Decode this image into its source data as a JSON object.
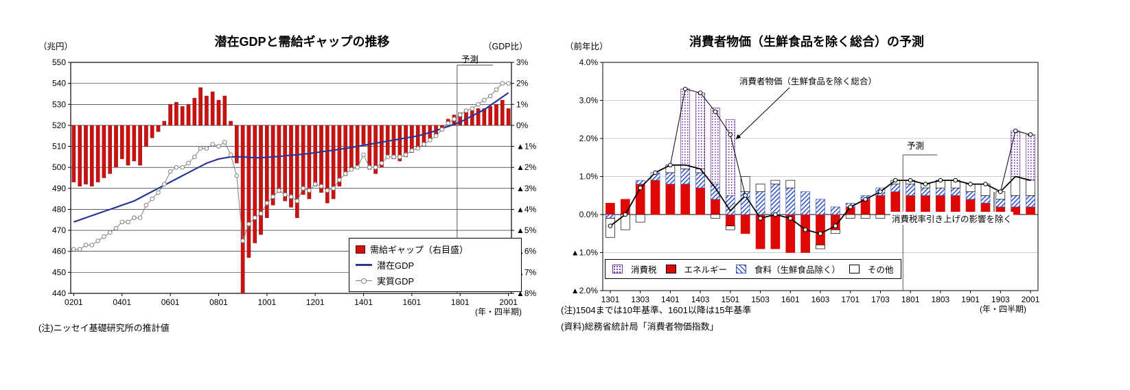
{
  "colors": {
    "gap_bar": "#cc1111",
    "gap_bar_edge": "#7a0000",
    "potential": "#283593",
    "actual": "#7f7f7f",
    "tax": "#7030a0",
    "energy": "#dd0806",
    "food": "#3355bb"
  },
  "left_chart": {
    "title": "潜在GDPと需給ギャップの推移",
    "y_left_unit": "（兆円）",
    "y_right_unit": "（GDP比）",
    "forecast_label": "予測",
    "note": "(注)ニッセイ基礎研究所の推計値",
    "x_unit": "(年・四半期)",
    "legend": [
      {
        "label": "需給ギャップ（右目盛）"
      },
      {
        "label": "潜在GDP"
      },
      {
        "label": "実質GDP"
      }
    ]
  },
  "right_chart": {
    "title": "消費者物価（生鮮食品を除く総合）の予測",
    "y_unit": "（前年比）",
    "forecast_label": "予測",
    "annotation_cpi": "消費者物価（生鮮食品を除く総合）",
    "annotation_extax": "消費税率引き上げの影響を除く",
    "note1": "(注)1504までは10年基準、1601以降は15年基準",
    "note2": "(資料)総務省統計局「消費者物価指数」",
    "x_unit": "(年・四半期)",
    "legend": [
      {
        "label": "消費税"
      },
      {
        "label": "エネルギー"
      },
      {
        "label": "食料（生鮮食品除く）"
      },
      {
        "label": "その他"
      }
    ]
  },
  "chart_data": [
    {
      "type": "bar",
      "title": "潜在GDPと需給ギャップの推移",
      "x": [
        "0201",
        "0202",
        "0203",
        "0204",
        "0301",
        "0302",
        "0303",
        "0304",
        "0401",
        "0402",
        "0403",
        "0404",
        "0501",
        "0502",
        "0503",
        "0504",
        "0601",
        "0602",
        "0603",
        "0604",
        "0701",
        "0702",
        "0703",
        "0704",
        "0801",
        "0802",
        "0803",
        "0804",
        "0901",
        "0902",
        "0903",
        "0904",
        "1001",
        "1002",
        "1003",
        "1004",
        "1101",
        "1102",
        "1103",
        "1104",
        "1201",
        "1202",
        "1203",
        "1204",
        "1301",
        "1302",
        "1303",
        "1304",
        "1401",
        "1402",
        "1403",
        "1404",
        "1501",
        "1502",
        "1503",
        "1504",
        "1601",
        "1602",
        "1603",
        "1604",
        "1701",
        "1702",
        "1703",
        "1704",
        "1801",
        "1802",
        "1803",
        "1804",
        "1901",
        "1902",
        "1903",
        "1904",
        "2001"
      ],
      "x_tick_every": 8,
      "y_left": {
        "label": "兆円",
        "min": 440,
        "max": 550,
        "step": 10
      },
      "y_right": {
        "label": "GDP比(%)",
        "min": -8,
        "max": 3,
        "step": 1
      },
      "forecast_start": "1801",
      "grid": true,
      "legend_position": "inside-lower-right",
      "series": [
        {
          "name": "需給ギャップ（右目盛）",
          "type": "bar",
          "axis": "right",
          "values": [
            -2.7,
            -2.9,
            -2.8,
            -2.9,
            -2.7,
            -2.5,
            -2.3,
            -2.0,
            -1.6,
            -1.9,
            -1.7,
            -1.9,
            -1.0,
            -0.6,
            -0.3,
            0.2,
            1.0,
            1.1,
            0.9,
            1.0,
            1.3,
            1.8,
            1.4,
            1.6,
            1.2,
            1.4,
            0.2,
            -1.8,
            -8.0,
            -6.3,
            -5.6,
            -5.2,
            -4.4,
            -3.8,
            -3.2,
            -3.6,
            -3.9,
            -4.4,
            -3.3,
            -3.5,
            -2.9,
            -3.2,
            -3.7,
            -3.5,
            -2.9,
            -2.4,
            -2.1,
            -1.9,
            -0.9,
            -2.1,
            -2.3,
            -2.0,
            -1.4,
            -1.6,
            -1.7,
            -1.5,
            -1.3,
            -1.1,
            -1.0,
            -0.7,
            -0.5,
            -0.1,
            0.3,
            0.5,
            0.6,
            0.7,
            0.7,
            0.8,
            0.8,
            0.9,
            1.0,
            1.2,
            0.8
          ]
        },
        {
          "name": "潜在GDP",
          "type": "line",
          "axis": "left",
          "values": [
            474,
            475,
            476,
            477,
            478,
            479,
            480,
            481,
            482,
            483,
            484,
            485.5,
            487,
            488.5,
            490,
            491.5,
            493,
            494.5,
            496,
            497.5,
            499,
            500.5,
            502,
            503,
            504,
            504.5,
            505,
            505,
            505,
            504.8,
            504.6,
            504.6,
            504.8,
            505,
            505.2,
            505.5,
            505.8,
            506,
            506.3,
            506.6,
            507,
            507.4,
            507.8,
            508.2,
            508.6,
            509,
            509.5,
            510,
            510.5,
            511,
            511.5,
            512,
            512.5,
            513,
            513.5,
            514,
            514.5,
            515,
            515.8,
            516.6,
            517.5,
            518.5,
            519.5,
            520.5,
            521.5,
            523,
            524.5,
            526,
            527.5,
            529.5,
            531.5,
            533.5,
            535.5
          ]
        },
        {
          "name": "実質GDP",
          "type": "line",
          "marker": "circle",
          "axis": "left",
          "values": [
            461,
            461,
            463,
            463,
            465,
            467,
            469,
            471,
            474,
            474,
            476,
            476,
            482,
            485,
            488,
            492,
            498,
            500,
            500,
            502,
            505,
            509,
            509,
            511,
            510,
            512,
            506,
            496,
            465,
            473,
            476,
            478,
            483,
            486,
            489,
            487,
            486,
            484,
            490,
            489,
            492,
            491,
            489,
            490,
            494,
            497,
            499,
            500,
            506,
            500,
            500,
            502,
            505,
            505,
            505,
            506,
            508,
            509,
            511,
            513,
            515,
            518,
            521,
            523,
            525,
            527,
            528,
            530,
            532,
            534,
            537,
            540,
            540
          ]
        }
      ]
    },
    {
      "type": "bar",
      "stacked": true,
      "title": "消費者物価（生鮮食品を除く総合）の予測",
      "x": [
        "1301",
        "1302",
        "1303",
        "1304",
        "1401",
        "1402",
        "1403",
        "1404",
        "1501",
        "1502",
        "1503",
        "1504",
        "1601",
        "1602",
        "1603",
        "1604",
        "1701",
        "1702",
        "1703",
        "1704",
        "1801",
        "1802",
        "1803",
        "1804",
        "1901",
        "1902",
        "1903",
        "1904",
        "2001"
      ],
      "x_tick_every": 2,
      "y": {
        "label": "前年比(%)",
        "min": -2,
        "max": 4,
        "step": 1
      },
      "forecast_start": "1801",
      "grid": true,
      "legend_position": "inside-bottom",
      "stack_order": [
        1,
        2,
        3,
        0
      ],
      "series": [
        {
          "name": "消費税",
          "type": "bar",
          "style": "tax",
          "values": [
            0,
            0,
            0,
            0,
            0,
            2.0,
            2.0,
            2.0,
            2.0,
            0,
            0,
            0,
            0,
            0,
            0,
            0,
            0,
            0,
            0,
            0,
            0,
            0,
            0,
            0,
            0,
            0,
            0,
            1.2,
            1.2
          ]
        },
        {
          "name": "エネルギー",
          "type": "bar",
          "style": "energy",
          "values": [
            0.3,
            0.4,
            0.8,
            0.9,
            0.8,
            0.8,
            0.7,
            0.4,
            -0.3,
            -0.5,
            -0.9,
            -0.9,
            -1.0,
            -1.0,
            -0.8,
            -0.4,
            0.2,
            0.4,
            0.5,
            0.6,
            0.5,
            0.5,
            0.5,
            0.5,
            0.4,
            0.3,
            0.2,
            0.2,
            0.2
          ]
        },
        {
          "name": "食料（生鮮食品除く）",
          "type": "bar",
          "style": "food",
          "values": [
            -0.1,
            0.0,
            0.1,
            0.2,
            0.3,
            0.4,
            0.4,
            0.4,
            0.5,
            0.6,
            0.6,
            0.8,
            0.7,
            0.6,
            0.4,
            0.2,
            0.1,
            0.1,
            0.2,
            0.2,
            0.3,
            0.2,
            0.2,
            0.2,
            0.2,
            0.2,
            0.2,
            0.3,
            0.3
          ]
        },
        {
          "name": "その他",
          "type": "bar",
          "style": "other",
          "values": [
            -0.5,
            -0.4,
            -0.2,
            0.0,
            0.2,
            0.1,
            0.1,
            -0.1,
            -0.1,
            0.4,
            0.2,
            0.1,
            0.2,
            0.0,
            -0.1,
            -0.1,
            -0.1,
            -0.1,
            -0.1,
            0.1,
            0.1,
            0.1,
            0.2,
            0.2,
            0.2,
            0.3,
            0.2,
            0.5,
            0.4
          ]
        },
        {
          "name": "消費者物価（生鮮食品を除く総合）",
          "type": "line",
          "style": "total",
          "marker": "circle",
          "values": [
            -0.3,
            0.0,
            0.7,
            1.1,
            1.3,
            3.3,
            3.2,
            2.7,
            2.1,
            0.5,
            -0.1,
            0.0,
            -0.1,
            -0.4,
            -0.5,
            -0.3,
            0.2,
            0.4,
            0.6,
            0.9,
            0.9,
            0.8,
            0.9,
            0.9,
            0.8,
            0.8,
            0.6,
            2.2,
            2.1
          ]
        },
        {
          "name": "消費税率引き上げの影響を除く",
          "type": "line",
          "style": "extax",
          "values": [
            -0.3,
            0.0,
            0.7,
            1.1,
            1.3,
            1.3,
            1.2,
            0.7,
            0.1,
            0.5,
            -0.1,
            0.0,
            -0.1,
            -0.4,
            -0.5,
            -0.3,
            0.2,
            0.4,
            0.6,
            0.9,
            0.9,
            0.8,
            0.9,
            0.9,
            0.8,
            0.8,
            0.6,
            1.0,
            0.9
          ]
        }
      ]
    }
  ]
}
